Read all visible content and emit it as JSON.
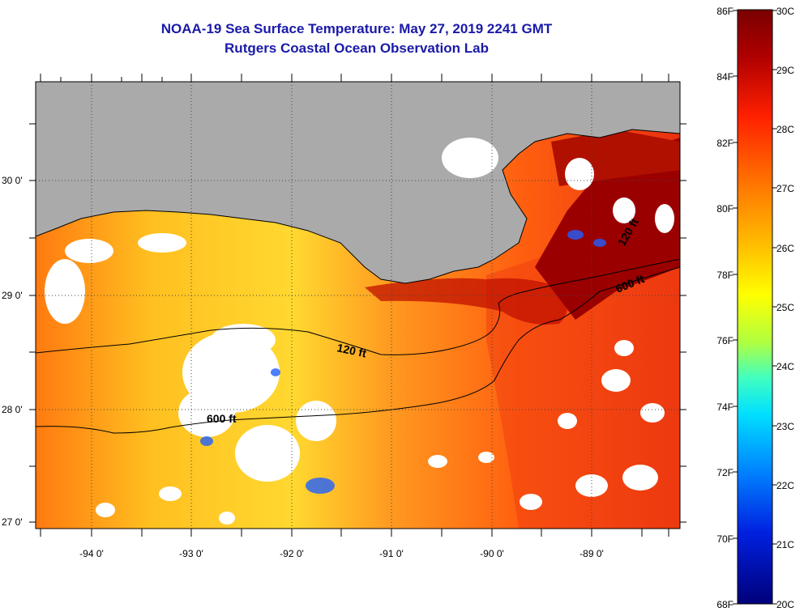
{
  "title": "NOAA-19 Sea Surface Temperature:  May 27, 2019 2241 GMT",
  "subtitle": "Rutgers Coastal Ocean Observation Lab",
  "map": {
    "lat_labels": [
      "30 0'",
      "29 0'",
      "28 0'",
      "27 0'"
    ],
    "lon_labels": [
      "-94 0'",
      "-93 0'",
      "-92 0'",
      "-91 0'",
      "-90 0'",
      "-89 0'"
    ],
    "contour_labels": {
      "c120_west": "120 ft",
      "c600_west": "600 ft",
      "c600_east": "600 ft",
      "c120_east": "120 ft"
    },
    "colors": {
      "land": "#aaaaaa",
      "cloud": "#ffffff",
      "coastline": "#000000",
      "graticule": "#444444"
    }
  },
  "colorbar": {
    "fahrenheit_labels": [
      "86F",
      "84F",
      "82F",
      "80F",
      "78F",
      "76F",
      "74F",
      "72F",
      "70F",
      "68F"
    ],
    "celsius_labels": [
      "30C",
      "29C",
      "28C",
      "27C",
      "26C",
      "25C",
      "24C",
      "23C",
      "22C",
      "21C",
      "20C"
    ],
    "colors_top_to_bottom": [
      "#7a0000",
      "#c00000",
      "#ff2000",
      "#ff7a00",
      "#ffc000",
      "#ffff00",
      "#b0ff40",
      "#40ffc0",
      "#00c0ff",
      "#0060ff",
      "#0000c0",
      "#00007a"
    ]
  }
}
